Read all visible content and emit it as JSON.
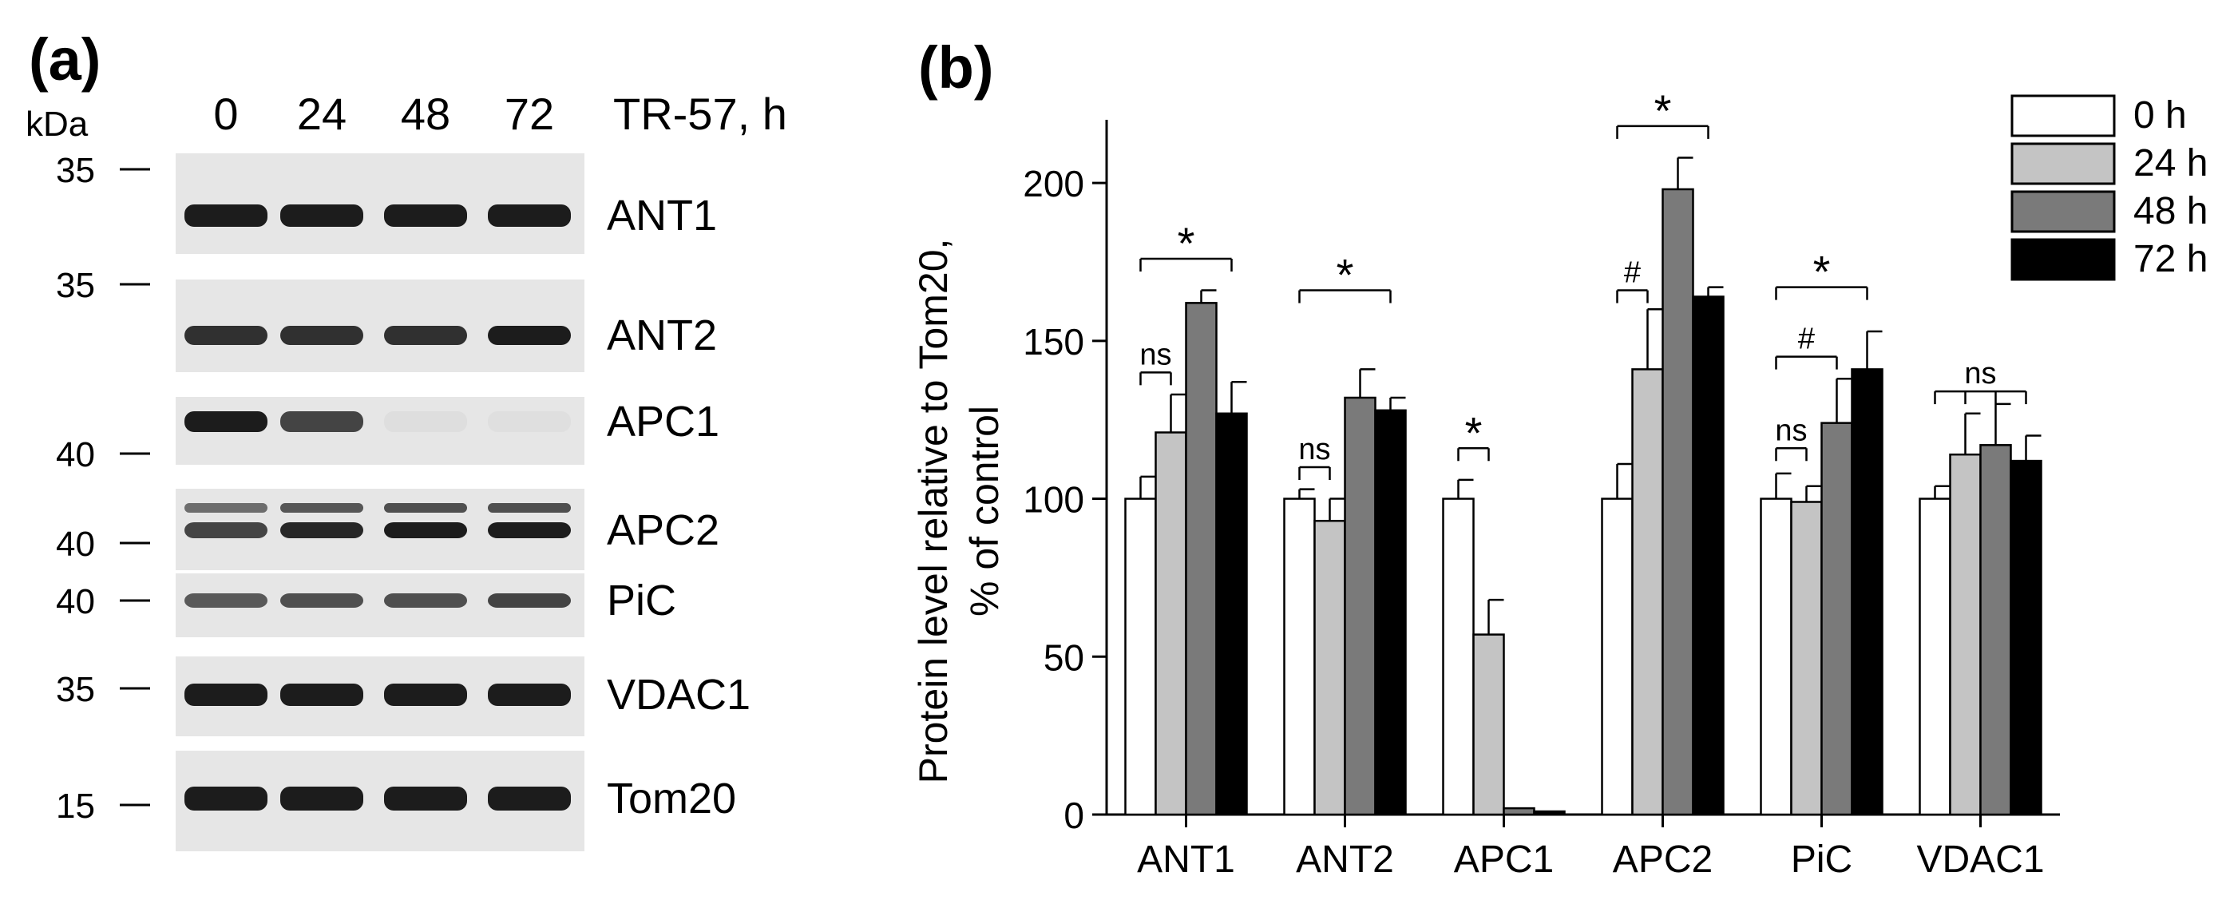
{
  "panel_a": {
    "label": "(a)",
    "kda_label": "kDa",
    "condition_label": "TR-57, h",
    "lanes": [
      "0",
      "24",
      "48",
      "72"
    ],
    "rows": [
      {
        "name": "ANT1",
        "marker": "35",
        "intensity": [
          1.0,
          1.0,
          1.0,
          1.0
        ]
      },
      {
        "name": "ANT2",
        "marker": "35",
        "intensity": [
          0.9,
          0.9,
          0.9,
          1.0
        ]
      },
      {
        "name": "APC1",
        "marker": "40",
        "intensity": [
          1.0,
          0.8,
          0.04,
          0.03
        ]
      },
      {
        "name": "APC2",
        "marker": "40",
        "intensity": [
          0.8,
          0.95,
          1.0,
          1.0
        ]
      },
      {
        "name": "PiC",
        "marker": "40",
        "intensity": [
          0.7,
          0.75,
          0.75,
          0.8
        ]
      },
      {
        "name": "VDAC1",
        "marker": "35",
        "intensity": [
          1.0,
          1.0,
          1.0,
          1.0
        ]
      },
      {
        "name": "Tom20",
        "marker": "15",
        "intensity": [
          1.0,
          1.0,
          1.0,
          1.0
        ]
      }
    ]
  },
  "chart_data": {
    "label": "(b)",
    "type": "bar",
    "ylabel_line1": "Protein level relative to Tom20,",
    "ylabel_line2": "% of control",
    "ylim": [
      0,
      220
    ],
    "yticks": [
      "0",
      "50",
      "100",
      "150",
      "200"
    ],
    "categories": [
      "ANT1",
      "ANT2",
      "APC1",
      "APC2",
      "PiC",
      "VDAC1"
    ],
    "series": [
      {
        "name": "0 h",
        "color": "#ffffff",
        "values": [
          100,
          100,
          100,
          100,
          100,
          100
        ],
        "errors": [
          7,
          3,
          6,
          11,
          8,
          4
        ]
      },
      {
        "name": "24 h",
        "color": "#c4c4c4",
        "values": [
          121,
          93,
          57,
          141,
          99,
          114
        ],
        "errors": [
          12,
          7,
          11,
          19,
          5,
          13
        ]
      },
      {
        "name": "48 h",
        "color": "#7a7a7a",
        "values": [
          162,
          132,
          2,
          198,
          124,
          117
        ],
        "errors": [
          4,
          9,
          0,
          10,
          14,
          13
        ]
      },
      {
        "name": "72 h",
        "color": "#000000",
        "values": [
          127,
          128,
          1,
          164,
          141,
          112
        ],
        "errors": [
          10,
          4,
          0,
          3,
          12,
          8
        ]
      }
    ],
    "annotations": [
      {
        "category": "ANT1",
        "text": "*",
        "from": 0,
        "to": 3,
        "level": 176
      },
      {
        "category": "ANT1",
        "text": "ns",
        "from": 0,
        "to": 1,
        "level": 140
      },
      {
        "category": "ANT2",
        "text": "*",
        "from": 0,
        "to": 3,
        "level": 166
      },
      {
        "category": "ANT2",
        "text": "ns",
        "from": 0,
        "to": 1,
        "level": 110
      },
      {
        "category": "APC1",
        "text": "*",
        "from": 0,
        "to": 1,
        "level": 116
      },
      {
        "category": "APC2",
        "text": "*",
        "from": 0,
        "to": 3,
        "level": 218
      },
      {
        "category": "APC2",
        "text": "#",
        "from": 0,
        "to": 1,
        "level": 166
      },
      {
        "category": "PiC",
        "text": "*",
        "from": 0,
        "to": 3,
        "level": 167
      },
      {
        "category": "PiC",
        "text": "#",
        "from": 0,
        "to": 2,
        "level": 145
      },
      {
        "category": "PiC",
        "text": "ns",
        "from": 0,
        "to": 1,
        "level": 116
      },
      {
        "category": "VDAC1",
        "text": "ns",
        "from": 0,
        "to": 3,
        "level": 134,
        "ticks": [
          0,
          1,
          2,
          3
        ]
      }
    ]
  }
}
